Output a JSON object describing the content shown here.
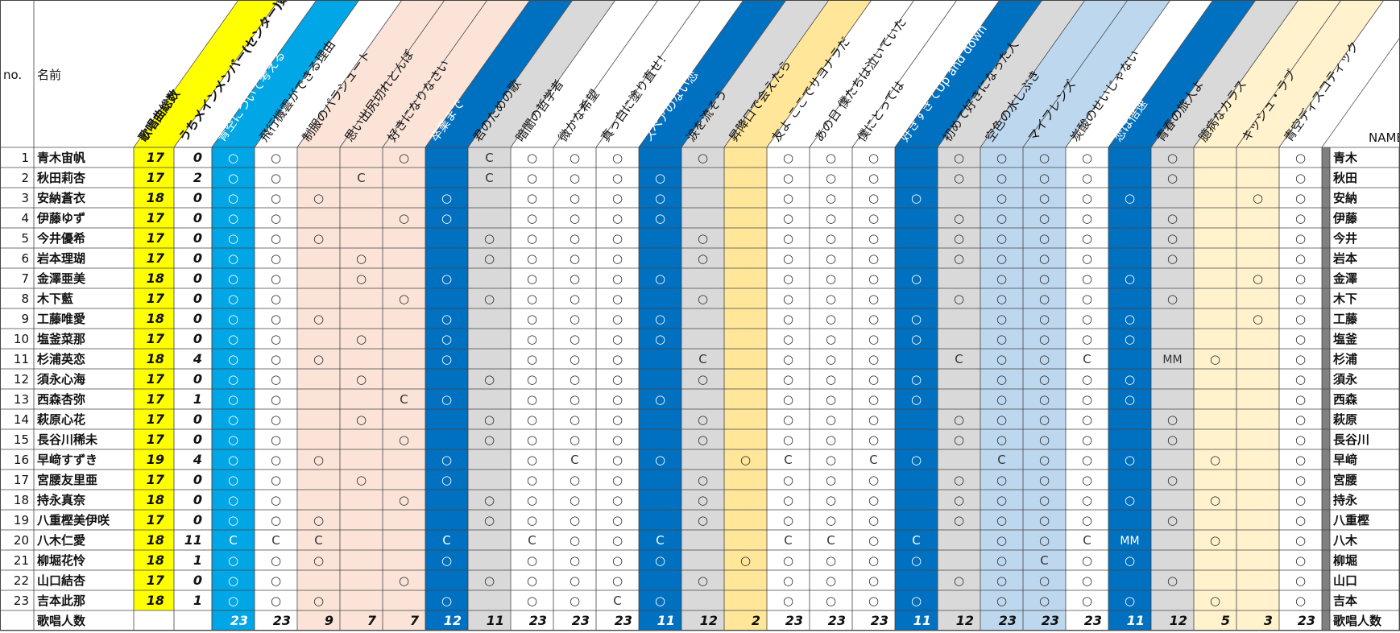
{
  "header": {
    "no_label": "no.",
    "name_label": "名前",
    "name_en_label": "NAME",
    "total_label": "歌唱曲総数",
    "center_label": "うちメインメンバー(センター)数"
  },
  "songs": [
    {
      "title": "青空について考える",
      "color": "#00a6e6"
    },
    {
      "title": "飛行機雲ができる理由",
      "color": "#ffffff"
    },
    {
      "title": "制服のパラシュート",
      "color": "#fbe3d8"
    },
    {
      "title": "思い出尻切れとんぼ",
      "color": "#fbe3d8"
    },
    {
      "title": "好きになりなさい",
      "color": "#fbe3d8"
    },
    {
      "title": "卒業まで",
      "color": "#0070c0"
    },
    {
      "title": "君のための歌",
      "color": "#d9d9d9"
    },
    {
      "title": "暗闇の哲学者",
      "color": "#ffffff"
    },
    {
      "title": "微かな希望",
      "color": "#ffffff"
    },
    {
      "title": "真っ白に塗り直せ！",
      "color": "#ffffff"
    },
    {
      "title": "スペアのない恋",
      "color": "#0070c0"
    },
    {
      "title": "涙を流そう",
      "color": "#d9d9d9"
    },
    {
      "title": "昇降口で会えたら",
      "color": "#ffe699"
    },
    {
      "title": "友よ ここでサヨナラだ",
      "color": "#ffffff"
    },
    {
      "title": "あの日 僕たちは泣いていた",
      "color": "#ffffff"
    },
    {
      "title": "僕にとっては",
      "color": "#ffffff"
    },
    {
      "title": "好きすぎてUp and down",
      "color": "#0070c0"
    },
    {
      "title": "初めて好きになった人",
      "color": "#d9d9d9"
    },
    {
      "title": "空色の水しぶき",
      "color": "#bdd7ee"
    },
    {
      "title": "マイフレンズ",
      "color": "#bdd7ee"
    },
    {
      "title": "炭酸のせいじゃない",
      "color": "#ffffff"
    },
    {
      "title": "恋は倍速",
      "color": "#0070c0"
    },
    {
      "title": "青春の旅人よ",
      "color": "#d9d9d9"
    },
    {
      "title": "臆病なカラス",
      "color": "#fff2cc"
    },
    {
      "title": "キッシュ・ラブ",
      "color": "#fff2cc"
    },
    {
      "title": "青空ディスコティック",
      "color": "#ffffff"
    }
  ],
  "members": [
    {
      "no": "1",
      "name": "青木宙帆",
      "total": "17",
      "center": "0",
      "short": "青木",
      "marks": "○,○,,,○,,C,○,○,○,,○,,○,○,○,,○,○,○,○,,○,,,○"
    },
    {
      "no": "2",
      "name": "秋田莉杏",
      "total": "17",
      "center": "2",
      "short": "秋田",
      "marks": "○,○,,C,,,C,○,○,○,○,,,○,○,○,,○,○,○,○,,○,,,○"
    },
    {
      "no": "3",
      "name": "安納蒼衣",
      "total": "18",
      "center": "0",
      "short": "安納",
      "marks": "○,○,○,,,○,,○,○,○,○,,,○,○,○,○,,○,○,○,○,,,○,○"
    },
    {
      "no": "4",
      "name": "伊藤ゆず",
      "total": "17",
      "center": "0",
      "short": "伊藤",
      "marks": "○,○,,,○,○,,○,○,○,○,,,○,○,○,,○,○,○,○,,○,,,○"
    },
    {
      "no": "5",
      "name": "今井優希",
      "total": "17",
      "center": "0",
      "short": "今井",
      "marks": "○,○,○,,,,○,○,○,○,,○,,○,○,○,,○,○,○,○,,○,,,○"
    },
    {
      "no": "6",
      "name": "岩本理瑚",
      "total": "17",
      "center": "0",
      "short": "岩本",
      "marks": "○,○,,○,,,○,○,○,○,,○,,○,○,○,,○,○,○,○,,○,,,○"
    },
    {
      "no": "7",
      "name": "金澤亜美",
      "total": "18",
      "center": "0",
      "short": "金澤",
      "marks": "○,○,,○,,○,,○,○,○,○,,,○,○,○,○,,○,○,○,○,,,○,○"
    },
    {
      "no": "8",
      "name": "木下藍",
      "total": "17",
      "center": "0",
      "short": "木下",
      "marks": "○,○,,,○,,○,○,○,○,,○,,○,○,○,,○,○,○,○,,○,,,○"
    },
    {
      "no": "9",
      "name": "工藤唯愛",
      "total": "18",
      "center": "0",
      "short": "工藤",
      "marks": "○,○,○,,,○,,○,○,○,○,,,○,○,○,○,,○,○,○,○,,,○,○"
    },
    {
      "no": "10",
      "name": "塩釜菜那",
      "total": "17",
      "center": "0",
      "short": "塩釜",
      "marks": "○,○,,○,,○,,○,○,○,○,,,○,○,○,○,,○,○,○,○,,,,○"
    },
    {
      "no": "11",
      "name": "杉浦英恋",
      "total": "18",
      "center": "4",
      "short": "杉浦",
      "marks": "○,○,○,,,○,,○,○,○,,C,,○,○,○,,C,○,○,C,,MM,○,,○"
    },
    {
      "no": "12",
      "name": "須永心海",
      "total": "17",
      "center": "0",
      "short": "須永",
      "marks": "○,○,,○,,,○,○,○,○,,○,,○,○,○,○,,○,○,○,○,,,,○"
    },
    {
      "no": "13",
      "name": "西森杏弥",
      "total": "17",
      "center": "1",
      "short": "西森",
      "marks": "○,○,,,C,○,,○,○,○,○,,,○,○,○,○,,○,○,○,○,,,,○"
    },
    {
      "no": "14",
      "name": "萩原心花",
      "total": "17",
      "center": "0",
      "short": "萩原",
      "marks": "○,○,,○,,,○,○,○,○,,○,,○,○,○,,○,○,○,○,,○,,,○"
    },
    {
      "no": "15",
      "name": "長谷川稀未",
      "total": "17",
      "center": "0",
      "short": "長谷川",
      "marks": "○,○,,,○,,○,○,○,○,,○,,○,○,○,,○,○,○,○,,○,,,○"
    },
    {
      "no": "16",
      "name": "早﨑すずき",
      "total": "19",
      "center": "4",
      "short": "早﨑",
      "marks": "○,○,○,,,○,,○,C,○,○,,○,C,○,C,○,,C,○,○,○,,○,,○"
    },
    {
      "no": "17",
      "name": "宮腰友里亜",
      "total": "17",
      "center": "0",
      "short": "宮腰",
      "marks": "○,○,,○,,○,,○,○,○,,○,,○,○,○,,○,○,○,○,,○,,,○"
    },
    {
      "no": "18",
      "name": "持永真奈",
      "total": "18",
      "center": "0",
      "short": "持永",
      "marks": "○,○,,,○,,○,○,○,○,,○,,○,○,○,,○,○,○,○,○,,○,,○"
    },
    {
      "no": "19",
      "name": "八重樫美伊咲",
      "total": "17",
      "center": "0",
      "short": "八重樫",
      "marks": "○,○,○,,,,○,○,○,○,,○,,○,○,○,,○,○,○,○,,○,,,○"
    },
    {
      "no": "20",
      "name": "八木仁愛",
      "total": "18",
      "center": "11",
      "short": "八木",
      "marks": "C,C,C,,,C,,C,○,○,C,,,C,C,○,C,,○,○,C,MM,,○,,○"
    },
    {
      "no": "21",
      "name": "柳堀花怜",
      "total": "18",
      "center": "1",
      "short": "柳堀",
      "marks": "○,○,○,,,○,,○,○,○,○,,○,○,○,○,○,,○,C,○,○,,,,○"
    },
    {
      "no": "22",
      "name": "山口結杏",
      "total": "17",
      "center": "0",
      "short": "山口",
      "marks": "○,○,,,○,,○,○,○,○,,○,,○,○,○,,○,○,○,○,,○,,,○"
    },
    {
      "no": "23",
      "name": "吉本此那",
      "total": "18",
      "center": "1",
      "short": "吉本",
      "marks": "○,○,○,,,○,,○,○,C,○,,,○,○,○,○,,○,○,○,○,,○,,○"
    }
  ],
  "footer": {
    "label": "歌唱人数",
    "label_right": "歌唱人数",
    "counts": [
      "23",
      "23",
      "9",
      "7",
      "7",
      "12",
      "11",
      "23",
      "23",
      "23",
      "11",
      "12",
      "2",
      "23",
      "23",
      "23",
      "11",
      "12",
      "23",
      "23",
      "23",
      "11",
      "12",
      "5",
      "3",
      "23"
    ]
  }
}
